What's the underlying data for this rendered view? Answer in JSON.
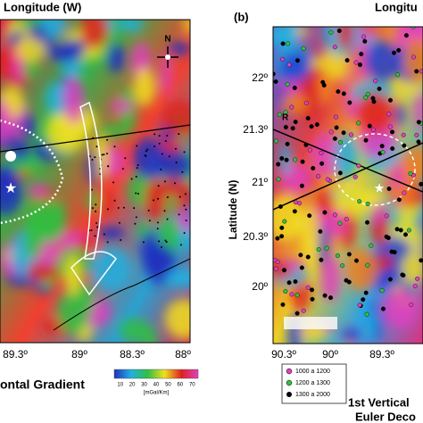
{
  "panel_a": {
    "title": "Longitude (W)",
    "compass": "N",
    "x_labels": [
      "89.3º",
      "89º",
      "88.3º",
      "88º"
    ],
    "caption": "ontal Gradient",
    "colorbar": {
      "ticks": [
        "10",
        "20",
        "30",
        "40",
        "50",
        "60",
        "70"
      ],
      "unit": "[mGal/Km]"
    }
  },
  "panel_b": {
    "label": "(b)",
    "title": "Longitu",
    "y_axis_label": "Latitude (N)",
    "y_labels": [
      "22º",
      "21.3º",
      "21º",
      "20.3º",
      "20º"
    ],
    "x_labels": [
      "90.3º",
      "90º",
      "89.3º"
    ],
    "profile_label": "R",
    "legend": [
      "1000 a 1200",
      "1200 a 1300",
      "1300 a 2000"
    ],
    "caption_lines": [
      "1st Vertical",
      "Euler Deco"
    ]
  }
}
